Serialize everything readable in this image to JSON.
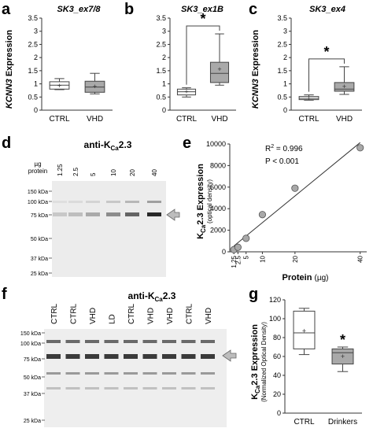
{
  "panels": {
    "a": {
      "letter": "a",
      "title": "SK3_ex7/8",
      "ylabel_gene": "KCNN3",
      "ylabel_rest": " Expression",
      "yticks": [
        "0",
        "0.5",
        "1",
        "1.5",
        "2",
        "2.5",
        "3",
        "3.5"
      ],
      "categories": [
        "CTRL",
        "VHD"
      ]
    },
    "b": {
      "letter": "b",
      "title": "SK3_ex1B",
      "yticks": [
        "0",
        "0.5",
        "1",
        "1.5",
        "2",
        "2.5",
        "3",
        "3.5"
      ],
      "categories": [
        "CTRL",
        "VHD"
      ],
      "star": "*"
    },
    "c": {
      "letter": "c",
      "title": "SK3_ex4",
      "ylabel_gene": "KCNN3",
      "ylabel_rest": " Expression",
      "yticks": [
        "0",
        "0.5",
        "1",
        "1.5",
        "2",
        "2.5",
        "3",
        "3.5"
      ],
      "categories": [
        "CTRL",
        "VHD"
      ],
      "star": "*"
    },
    "d": {
      "letter": "d",
      "title_pre": "anti-K",
      "title_sub": "Ca",
      "title_post": "2.3",
      "header1": "µg",
      "header2": "protein",
      "lanes": [
        "1.25",
        "2.5",
        "5",
        "10",
        "20",
        "40"
      ],
      "markers": [
        "150 kDa",
        "100 kDa",
        "75 kDa",
        "50 kDa",
        "37 kDa",
        "25 kDa"
      ]
    },
    "e": {
      "letter": "e",
      "ylabel_pre": "K",
      "ylabel_sub": "Ca",
      "ylabel_post": "2.3 Expression",
      "ylabel2": "(optical density)",
      "r2": "R",
      "r2_sup": "2",
      "r2_val": " = 0.996",
      "p": "P < 0.001",
      "yticks": [
        "0",
        "2000",
        "4000",
        "6000",
        "8000",
        "10000"
      ],
      "xticks": [
        "1.25",
        "2.5",
        "5",
        "10",
        "20",
        "40"
      ],
      "xlabel_pre": "Protein ",
      "xlabel_unit": "(µg)"
    },
    "f": {
      "letter": "f",
      "title_pre": "anti-K",
      "title_sub": "Ca",
      "title_post": "2.3",
      "lanes": [
        "CTRL",
        "CTRL",
        "VHD",
        "LD",
        "CTRL",
        "VHD",
        "VHD",
        "CTRL",
        "VHD"
      ],
      "markers": [
        "150 kDa",
        "100 kDa",
        "75 kDa",
        "50 kDa",
        "37 kDa",
        "25 kDa"
      ]
    },
    "g": {
      "letter": "g",
      "ylabel_pre": "K",
      "ylabel_sub": "Ca",
      "ylabel_post": "2.3 Expression",
      "ylabel2": "(Normalized Optical Density)",
      "yticks": [
        "0",
        "20",
        "40",
        "60",
        "80",
        "100",
        "120"
      ],
      "categories": [
        "CTRL",
        "Drinkers"
      ],
      "star": "*"
    }
  },
  "chart_data": [
    {
      "type": "box",
      "panel": "a",
      "title": "SK3_ex7/8",
      "ylabel": "KCNN3 Expression",
      "ylim": [
        0,
        3.5
      ],
      "categories": [
        "CTRL",
        "VHD"
      ],
      "boxes": [
        {
          "min": 0.78,
          "q1": 0.8,
          "median": 0.95,
          "q3": 1.08,
          "max": 1.2,
          "mean": 0.93,
          "fill": "#ffffff"
        },
        {
          "min": 0.62,
          "q1": 0.68,
          "median": 0.88,
          "q3": 1.1,
          "max": 1.4,
          "mean": 0.9,
          "fill": "#a9a9a9"
        }
      ]
    },
    {
      "type": "box",
      "panel": "b",
      "title": "SK3_ex1B",
      "ylim": [
        0,
        3.5
      ],
      "categories": [
        "CTRL",
        "VHD"
      ],
      "significance": "*",
      "boxes": [
        {
          "min": 0.5,
          "q1": 0.58,
          "median": 0.7,
          "q3": 0.8,
          "max": 0.85,
          "mean": 0.7,
          "fill": "#ffffff"
        },
        {
          "min": 0.95,
          "q1": 1.05,
          "median": 1.4,
          "q3": 1.82,
          "max": 2.9,
          "mean": 1.55,
          "fill": "#a9a9a9"
        }
      ]
    },
    {
      "type": "box",
      "panel": "c",
      "title": "SK3_ex4",
      "ylabel": "KCNN3 Expression",
      "ylim": [
        0,
        3.5
      ],
      "categories": [
        "CTRL",
        "VHD"
      ],
      "significance": "*",
      "boxes": [
        {
          "min": 0.38,
          "q1": 0.4,
          "median": 0.45,
          "q3": 0.52,
          "max": 0.58,
          "mean": 0.45,
          "fill": "#ffffff"
        },
        {
          "min": 0.6,
          "q1": 0.72,
          "median": 0.8,
          "q3": 1.05,
          "max": 1.65,
          "mean": 0.9,
          "fill": "#a9a9a9"
        }
      ]
    },
    {
      "type": "scatter",
      "panel": "e",
      "ylabel": "KCa2.3 Expression (optical density)",
      "xlabel": "Protein (µg)",
      "x": [
        1.25,
        2.5,
        5,
        10,
        20,
        40
      ],
      "y": [
        200,
        420,
        1250,
        3450,
        5900,
        9650
      ],
      "xlim": [
        0,
        42
      ],
      "ylim": [
        0,
        10000
      ],
      "fit": "linear",
      "r2": 0.996,
      "p": "P < 0.001"
    },
    {
      "type": "box",
      "panel": "g",
      "ylabel": "KCa2.3 Expression (Normalized Optical Density)",
      "ylim": [
        0,
        120
      ],
      "categories": [
        "CTRL",
        "Drinkers"
      ],
      "significance": "*",
      "boxes": [
        {
          "min": 62,
          "q1": 68,
          "median": 85,
          "q3": 108,
          "max": 111,
          "mean": 87,
          "fill": "#ffffff"
        },
        {
          "min": 44,
          "q1": 52,
          "median": 64,
          "q3": 68,
          "max": 70,
          "mean": 60,
          "fill": "#a9a9a9"
        }
      ]
    }
  ],
  "colors": {
    "box_vhd": "#a9a9a9",
    "box_ctrl": "#ffffff",
    "point": "#a8a8a8",
    "axis": "#333333"
  }
}
